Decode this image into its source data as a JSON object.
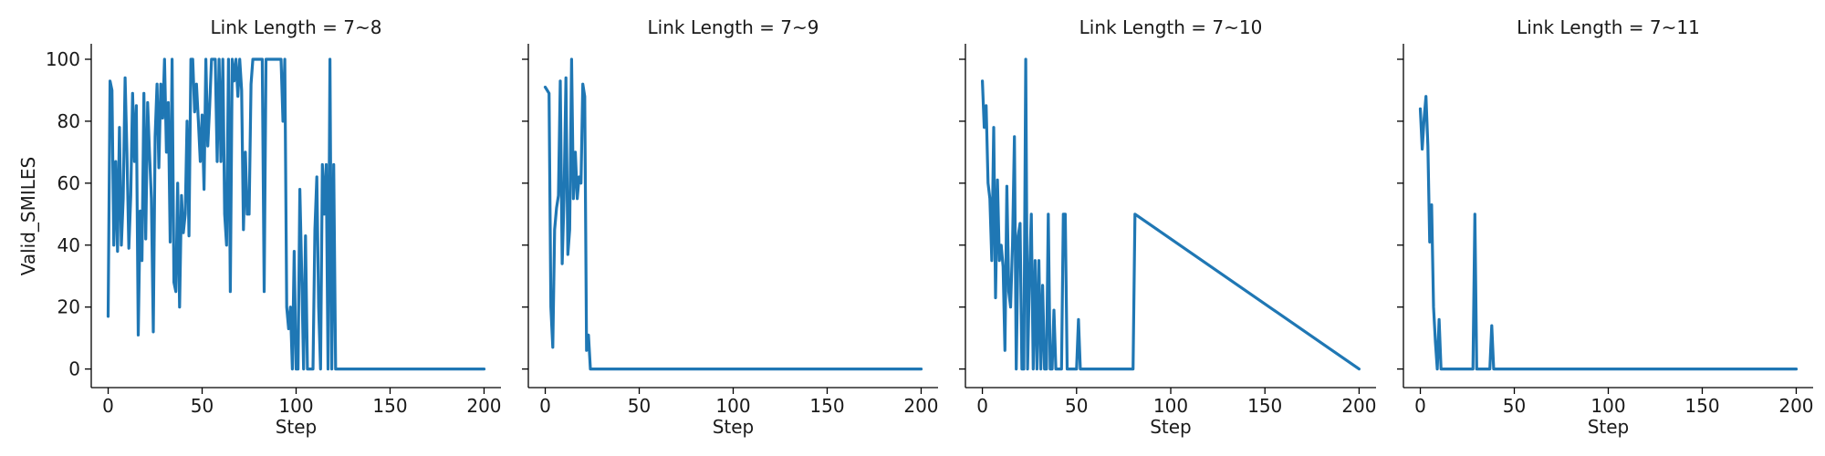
{
  "chart_data": {
    "type": "line",
    "ylabel": "Valid_SMILES",
    "ylim": [
      -6,
      105
    ],
    "yticks": [
      0,
      20,
      40,
      60,
      80,
      100
    ],
    "xticks": [
      0,
      50,
      100,
      150,
      200
    ],
    "series_color": "#1f77b4",
    "panels": [
      {
        "title": "Link Length = 7~8",
        "xlabel": "Step",
        "xlim": [
          -9,
          209
        ],
        "x": [
          0,
          1,
          2,
          3,
          4,
          5,
          6,
          7,
          8,
          9,
          10,
          11,
          12,
          13,
          14,
          15,
          16,
          17,
          18,
          19,
          20,
          21,
          22,
          23,
          24,
          25,
          26,
          27,
          28,
          29,
          30,
          31,
          32,
          33,
          34,
          35,
          36,
          37,
          38,
          39,
          40,
          41,
          42,
          43,
          44,
          45,
          46,
          47,
          48,
          49,
          50,
          51,
          52,
          53,
          54,
          55,
          56,
          57,
          58,
          59,
          60,
          61,
          62,
          63,
          64,
          65,
          66,
          67,
          68,
          69,
          70,
          71,
          72,
          73,
          74,
          75,
          76,
          77,
          78,
          79,
          80,
          81,
          82,
          83,
          84,
          85,
          86,
          87,
          88,
          89,
          90,
          91,
          92,
          93,
          94,
          95,
          96,
          97,
          98,
          99,
          100,
          101,
          102,
          103,
          104,
          105,
          106,
          107,
          108,
          109,
          110,
          111,
          112,
          113,
          114,
          115,
          116,
          117,
          118,
          119,
          120,
          121,
          122,
          123,
          124,
          125,
          126,
          127,
          128,
          129,
          130,
          131,
          132,
          133,
          134,
          135,
          136,
          137,
          138,
          139,
          140,
          141,
          142,
          143,
          144,
          145,
          146,
          147,
          148,
          149,
          150,
          200
        ],
        "y": [
          17,
          93,
          90,
          40,
          67,
          38,
          78,
          40,
          55,
          94,
          70,
          39,
          56,
          89,
          67,
          85,
          11,
          51,
          35,
          89,
          42,
          86,
          70,
          55,
          12,
          75,
          92,
          65,
          92,
          81,
          100,
          70,
          86,
          41,
          100,
          28,
          25,
          60,
          20,
          56,
          44,
          50,
          80,
          43,
          100,
          100,
          83,
          92,
          80,
          67,
          82,
          58,
          100,
          72,
          85,
          100,
          100,
          100,
          67,
          100,
          67,
          100,
          50,
          40,
          100,
          25,
          100,
          93,
          100,
          88,
          100,
          90,
          45,
          70,
          50,
          50,
          92,
          100,
          100,
          100,
          100,
          100,
          100,
          25,
          100,
          100,
          100,
          100,
          100,
          100,
          100,
          100,
          100,
          80,
          100,
          20,
          13,
          20,
          0,
          38,
          0,
          0,
          58,
          30,
          0,
          43,
          0,
          0,
          0,
          0,
          45,
          62,
          20,
          0,
          66,
          50,
          66,
          0,
          100,
          0,
          66,
          0,
          0,
          0,
          0,
          0,
          0,
          0,
          0,
          0,
          0,
          0,
          0,
          0,
          0,
          0,
          0,
          0,
          0,
          0,
          0,
          0,
          0,
          0,
          0,
          0,
          0,
          0,
          0,
          0,
          0,
          0
        ]
      },
      {
        "title": "Link Length = 7~9",
        "xlabel": "Step",
        "xlim": [
          -9,
          209
        ],
        "x": [
          0,
          1,
          2,
          3,
          4,
          5,
          6,
          7,
          8,
          9,
          10,
          11,
          12,
          13,
          14,
          15,
          16,
          17,
          18,
          19,
          20,
          21,
          22,
          23,
          24,
          25,
          200
        ],
        "y": [
          91,
          90,
          89,
          20,
          7,
          45,
          52,
          56,
          93,
          34,
          55,
          94,
          37,
          45,
          100,
          55,
          70,
          55,
          62,
          60,
          92,
          88,
          6,
          11,
          0,
          0,
          0
        ]
      },
      {
        "title": "Link Length = 7~10",
        "xlabel": "Step",
        "xlim": [
          -9,
          209
        ],
        "x": [
          0,
          1,
          2,
          3,
          4,
          5,
          6,
          7,
          8,
          9,
          10,
          11,
          12,
          13,
          14,
          15,
          16,
          17,
          18,
          19,
          20,
          21,
          22,
          23,
          24,
          25,
          26,
          27,
          28,
          29,
          30,
          31,
          32,
          33,
          34,
          35,
          36,
          37,
          38,
          39,
          40,
          41,
          42,
          43,
          44,
          45,
          46,
          47,
          48,
          49,
          50,
          51,
          52,
          53,
          54,
          55,
          80,
          81,
          200
        ],
        "y": [
          93,
          78,
          85,
          60,
          55,
          35,
          78,
          23,
          61,
          35,
          40,
          33,
          6,
          59,
          25,
          20,
          40,
          75,
          0,
          43,
          47,
          0,
          0,
          100,
          0,
          30,
          50,
          0,
          35,
          0,
          35,
          0,
          27,
          0,
          0,
          50,
          0,
          0,
          19,
          0,
          0,
          0,
          0,
          50,
          50,
          0,
          0,
          0,
          0,
          0,
          0,
          16,
          0,
          0,
          0,
          0,
          0,
          50,
          0
        ]
      },
      {
        "title": "Link Length = 7~11",
        "xlabel": "Step",
        "xlim": [
          -9,
          209
        ],
        "x": [
          0,
          1,
          2,
          3,
          4,
          5,
          6,
          7,
          8,
          9,
          10,
          11,
          12,
          13,
          14,
          15,
          16,
          17,
          18,
          19,
          20,
          21,
          22,
          23,
          24,
          25,
          26,
          27,
          28,
          29,
          30,
          31,
          32,
          33,
          34,
          35,
          36,
          37,
          38,
          39,
          40,
          41,
          200
        ],
        "y": [
          84,
          71,
          81,
          88,
          72,
          41,
          53,
          20,
          9,
          0,
          16,
          0,
          0,
          0,
          0,
          0,
          0,
          0,
          0,
          0,
          0,
          0,
          0,
          0,
          0,
          0,
          0,
          0,
          0,
          50,
          0,
          0,
          0,
          0,
          0,
          0,
          0,
          0,
          14,
          0,
          0,
          0,
          0
        ]
      }
    ]
  }
}
